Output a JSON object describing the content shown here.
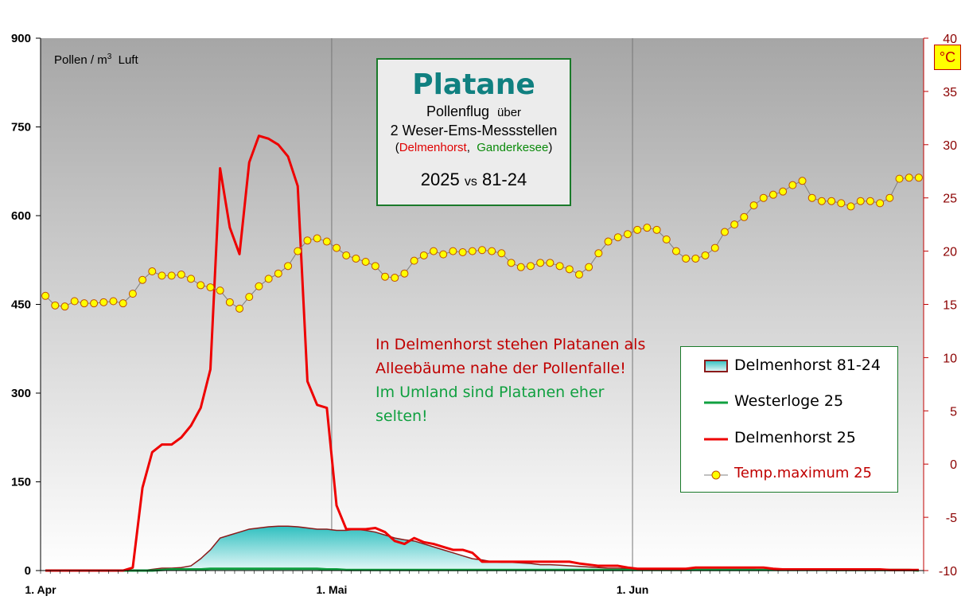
{
  "chart_data": {
    "type": "line",
    "ylabel": "Pollen / m",
    "ylabel_sup": "3",
    "ylabel_tail": "Luft",
    "y_left": {
      "range": [
        0,
        900
      ],
      "ticks": [
        "0",
        "150",
        "300",
        "450",
        "600",
        "750",
        "900"
      ]
    },
    "y_right": {
      "unit": "°C",
      "range": [
        -10,
        40
      ],
      "ticks": [
        "-10",
        "-5",
        "0",
        "5",
        "10",
        "15",
        "20",
        "25",
        "30",
        "35",
        "40"
      ]
    },
    "x_axis": {
      "start": "1. Apr",
      "days": 91,
      "tick_labels": [
        "1. Apr",
        "1. Mai",
        "1. Jun"
      ],
      "tick_days": [
        0,
        30,
        61
      ]
    },
    "grid": "vertical lines at month starts",
    "series": [
      {
        "name": "Delmenhorst 81-24",
        "kind": "area",
        "axis": "left",
        "color": "#3cc4c4",
        "values": [
          0,
          0,
          0,
          0,
          0,
          0,
          0,
          0,
          0,
          0,
          0,
          2,
          4,
          4,
          5,
          8,
          20,
          35,
          55,
          60,
          65,
          70,
          72,
          74,
          75,
          75,
          74,
          72,
          70,
          70,
          68,
          68,
          70,
          68,
          65,
          60,
          55,
          52,
          50,
          45,
          40,
          35,
          30,
          25,
          20,
          18,
          15,
          14,
          14,
          13,
          12,
          10,
          10,
          9,
          8,
          7,
          6,
          5,
          4,
          4,
          3,
          3,
          3,
          2,
          2,
          2,
          2,
          2,
          2,
          2,
          2,
          2,
          2,
          2,
          1,
          1,
          1,
          1,
          1,
          1,
          1,
          0,
          0,
          0,
          0,
          0,
          0,
          0,
          0,
          0,
          0
        ]
      },
      {
        "name": "Westerloge 25",
        "kind": "line",
        "axis": "left",
        "color": "#10a040",
        "values": [
          0,
          0,
          0,
          0,
          0,
          0,
          0,
          0,
          0,
          0,
          0,
          0,
          1,
          2,
          2,
          2,
          2,
          3,
          3,
          3,
          3,
          3,
          3,
          3,
          3,
          3,
          3,
          3,
          3,
          2,
          2,
          1,
          1,
          1,
          1,
          1,
          1,
          1,
          1,
          1,
          1,
          1,
          1,
          1,
          1,
          1,
          1,
          1,
          1,
          1,
          1,
          1,
          1,
          1,
          1,
          1,
          1,
          1,
          1,
          1,
          1,
          1,
          1,
          1,
          1,
          1,
          1,
          1,
          1,
          1,
          1,
          1,
          1,
          1,
          1,
          1,
          1,
          1,
          1,
          1,
          1,
          1,
          1,
          1,
          1,
          1,
          1,
          1,
          1,
          1,
          0
        ]
      },
      {
        "name": "Delmenhorst 25",
        "kind": "line",
        "axis": "left",
        "color": "#ee0000",
        "values": [
          0,
          0,
          0,
          0,
          0,
          0,
          0,
          0,
          0,
          5,
          140,
          200,
          213,
          213,
          225,
          245,
          275,
          340,
          680,
          580,
          535,
          690,
          735,
          730,
          720,
          700,
          650,
          320,
          280,
          275,
          110,
          70,
          70,
          70,
          72,
          65,
          50,
          45,
          55,
          48,
          45,
          40,
          35,
          35,
          30,
          15,
          15,
          15,
          15,
          15,
          15,
          15,
          15,
          15,
          15,
          12,
          10,
          8,
          8,
          8,
          5,
          3,
          3,
          3,
          3,
          3,
          3,
          5,
          5,
          5,
          5,
          5,
          5,
          5,
          5,
          3,
          2,
          2,
          2,
          2,
          2,
          2,
          2,
          2,
          2,
          2,
          2,
          1,
          1,
          1,
          1
        ]
      },
      {
        "name": "Temp.maximum 25",
        "kind": "line+markers",
        "axis": "right",
        "color": "#ffff00",
        "values": [
          15.8,
          14.9,
          14.8,
          15.3,
          15.1,
          15.1,
          15.2,
          15.3,
          15.1,
          16.0,
          17.3,
          18.1,
          17.7,
          17.7,
          17.8,
          17.4,
          16.8,
          16.6,
          16.3,
          15.2,
          14.6,
          15.7,
          16.7,
          17.4,
          17.9,
          18.6,
          20.0,
          21.0,
          21.2,
          20.9,
          20.3,
          19.6,
          19.3,
          19.0,
          18.6,
          17.6,
          17.5,
          17.9,
          19.1,
          19.6,
          20.0,
          19.7,
          20.0,
          19.9,
          20.0,
          20.1,
          20.0,
          19.8,
          18.9,
          18.5,
          18.6,
          18.9,
          18.9,
          18.6,
          18.3,
          17.8,
          18.5,
          19.8,
          20.9,
          21.3,
          21.6,
          22.0,
          22.2,
          22.0,
          21.1,
          20.0,
          19.3,
          19.3,
          19.6,
          20.3,
          21.8,
          22.5,
          23.2,
          24.3,
          25.0,
          25.3,
          25.6,
          26.2,
          26.6,
          25.0,
          24.7,
          24.7,
          24.5,
          24.2,
          24.7,
          24.7,
          24.5,
          25.0,
          26.8,
          26.9,
          26.9
        ]
      }
    ]
  },
  "title_box": {
    "title": "Platane",
    "line1": "Pollenflug",
    "line1_small": "über",
    "line2": "2 Weser-Ems-Messstellen",
    "paren_open": "(",
    "loc1": "Delmenhorst",
    "comma": ",",
    "loc2": "Ganderkesee",
    "paren_close": ")",
    "year": "2025",
    "vs": "vs",
    "ref": "81-24"
  },
  "annotation": {
    "red": "In Delmenhorst  stehen Platanen als Alleebäume  nahe der Pollenfalle!",
    "green": "Im Umland sind Platanen eher selten!"
  },
  "legend": {
    "items": [
      "Delmenhorst 81-24",
      "Westerloge 25",
      "Delmenhorst 25",
      "Temp.maximum 25"
    ]
  },
  "colors": {
    "plot_bg_top": "#a8a8a8",
    "plot_bg_bottom": "#ffffff",
    "area_top": "#3cc4c4",
    "area_bottom": "#e8f8f8",
    "area_edge": "#8b1a1a",
    "temp_marker": "#ffff00",
    "temp_line": "#808080"
  }
}
